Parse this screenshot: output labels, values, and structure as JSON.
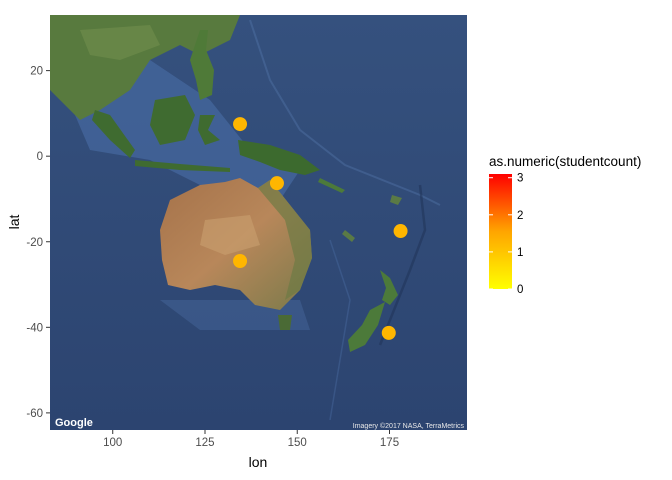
{
  "chart_data": {
    "type": "scatter",
    "xlabel": "lon",
    "ylabel": "lat",
    "xlim": [
      83,
      196
    ],
    "ylim": [
      -64,
      33
    ],
    "x_ticks": [
      100,
      125,
      150,
      175
    ],
    "y_ticks": [
      20,
      0,
      -20,
      -40,
      -60
    ],
    "x_tick_labels": [
      "100",
      "125",
      "150",
      "175"
    ],
    "y_tick_labels": [
      "20",
      "0",
      "-20",
      "-40",
      "-60"
    ],
    "points": [
      {
        "lon": 134.5,
        "lat": 7.5,
        "studentcount": 1.25
      },
      {
        "lon": 144.5,
        "lat": -6.3,
        "studentcount": 1.25
      },
      {
        "lon": 178.0,
        "lat": -17.5,
        "studentcount": 1.25
      },
      {
        "lon": 134.5,
        "lat": -24.5,
        "studentcount": 1.25
      },
      {
        "lon": 174.8,
        "lat": -41.3,
        "studentcount": 1.25
      }
    ],
    "legend": {
      "title": "as.numeric(studentcount)",
      "ticks": [
        "3",
        "2",
        "1",
        "0"
      ],
      "tick_values": [
        3,
        2,
        1,
        0
      ],
      "range": [
        0,
        3.1
      ],
      "colors": [
        "#ffff00",
        "#ffa500",
        "#ff0000"
      ],
      "placement": "right"
    },
    "grid": false
  },
  "basemap": {
    "logo": "Google",
    "attribution": "Imagery ©2017 NASA, TerraMetrics"
  }
}
